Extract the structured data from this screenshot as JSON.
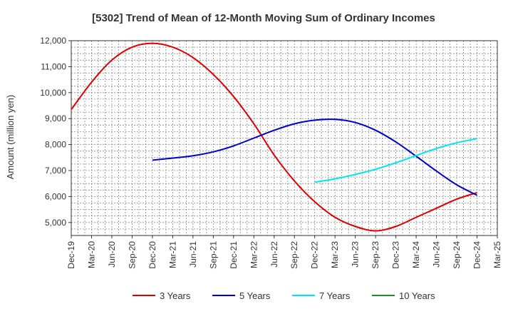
{
  "chart_data": {
    "type": "line",
    "title": "[5302]  Trend of Mean of 12-Month Moving Sum of Ordinary Incomes",
    "xlabel": "",
    "ylabel": "Amount (million yen)",
    "ylim": [
      4500,
      12000
    ],
    "yticks": [
      5000,
      6000,
      7000,
      8000,
      9000,
      10000,
      11000,
      12000
    ],
    "ytick_labels": [
      "5,000",
      "6,000",
      "7,000",
      "8,000",
      "9,000",
      "10,000",
      "11,000",
      "12,000"
    ],
    "x_categories": [
      "Dec-19",
      "Mar-20",
      "Jun-20",
      "Sep-20",
      "Dec-20",
      "Mar-21",
      "Jun-21",
      "Sep-21",
      "Dec-21",
      "Mar-22",
      "Jun-22",
      "Sep-22",
      "Dec-22",
      "Mar-23",
      "Jun-23",
      "Sep-23",
      "Dec-23",
      "Mar-24",
      "Jun-24",
      "Sep-24",
      "Dec-24",
      "Mar-25"
    ],
    "grid": true,
    "legend_position": "bottom",
    "series": [
      {
        "name": "3 Years",
        "color": "#dd0000",
        "x": [
          "Dec-19",
          "Mar-20",
          "Jun-20",
          "Sep-20",
          "Dec-20",
          "Mar-21",
          "Jun-21",
          "Sep-21",
          "Dec-21",
          "Mar-22",
          "Jun-22",
          "Sep-22",
          "Dec-22",
          "Mar-23",
          "Jun-23",
          "Sep-23",
          "Dec-23",
          "Mar-24",
          "Jun-24",
          "Sep-24",
          "Dec-24"
        ],
        "values": [
          9350,
          10400,
          11250,
          11750,
          11900,
          11750,
          11350,
          10700,
          9850,
          8800,
          7600,
          6600,
          5800,
          5200,
          4850,
          4680,
          4850,
          5200,
          5550,
          5900,
          6150
        ]
      },
      {
        "name": "5 Years",
        "color": "#0000cc",
        "x": [
          "Dec-20",
          "Mar-21",
          "Jun-21",
          "Sep-21",
          "Dec-21",
          "Mar-22",
          "Jun-22",
          "Sep-22",
          "Dec-22",
          "Mar-23",
          "Jun-23",
          "Sep-23",
          "Dec-23",
          "Mar-24",
          "Jun-24",
          "Sep-24",
          "Dec-24"
        ],
        "values": [
          7400,
          7480,
          7570,
          7720,
          7950,
          8250,
          8550,
          8800,
          8940,
          8970,
          8850,
          8550,
          8100,
          7550,
          6980,
          6450,
          6050
        ]
      },
      {
        "name": "7 Years",
        "color": "#00e5ee",
        "x": [
          "Dec-22",
          "Mar-23",
          "Jun-23",
          "Sep-23",
          "Dec-23",
          "Mar-24",
          "Jun-24",
          "Sep-24",
          "Dec-24"
        ],
        "values": [
          6550,
          6680,
          6850,
          7050,
          7300,
          7580,
          7850,
          8070,
          8230
        ]
      },
      {
        "name": "10 Years",
        "color": "#228b22",
        "x": [],
        "values": []
      }
    ]
  }
}
